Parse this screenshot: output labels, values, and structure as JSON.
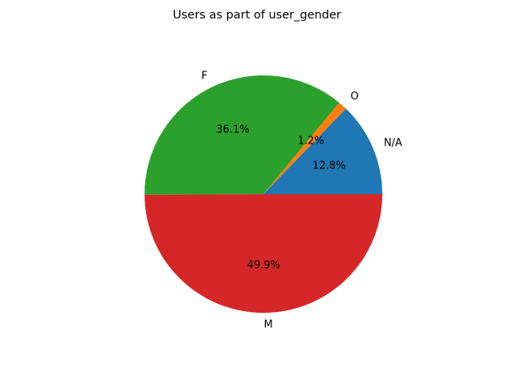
{
  "chart_data": {
    "type": "pie",
    "title": "Users as part of user_gender",
    "labels": [
      "N/A",
      "O",
      "F",
      "M"
    ],
    "values": [
      12.8,
      1.2,
      36.1,
      49.9
    ],
    "value_labels": [
      "12.8%",
      "1.2%",
      "36.1%",
      "49.9%"
    ],
    "colors": [
      "#1f77b4",
      "#ff7f0e",
      "#2ca02c",
      "#d62728"
    ],
    "start_angle_deg": 0,
    "direction": "counterclockwise"
  }
}
